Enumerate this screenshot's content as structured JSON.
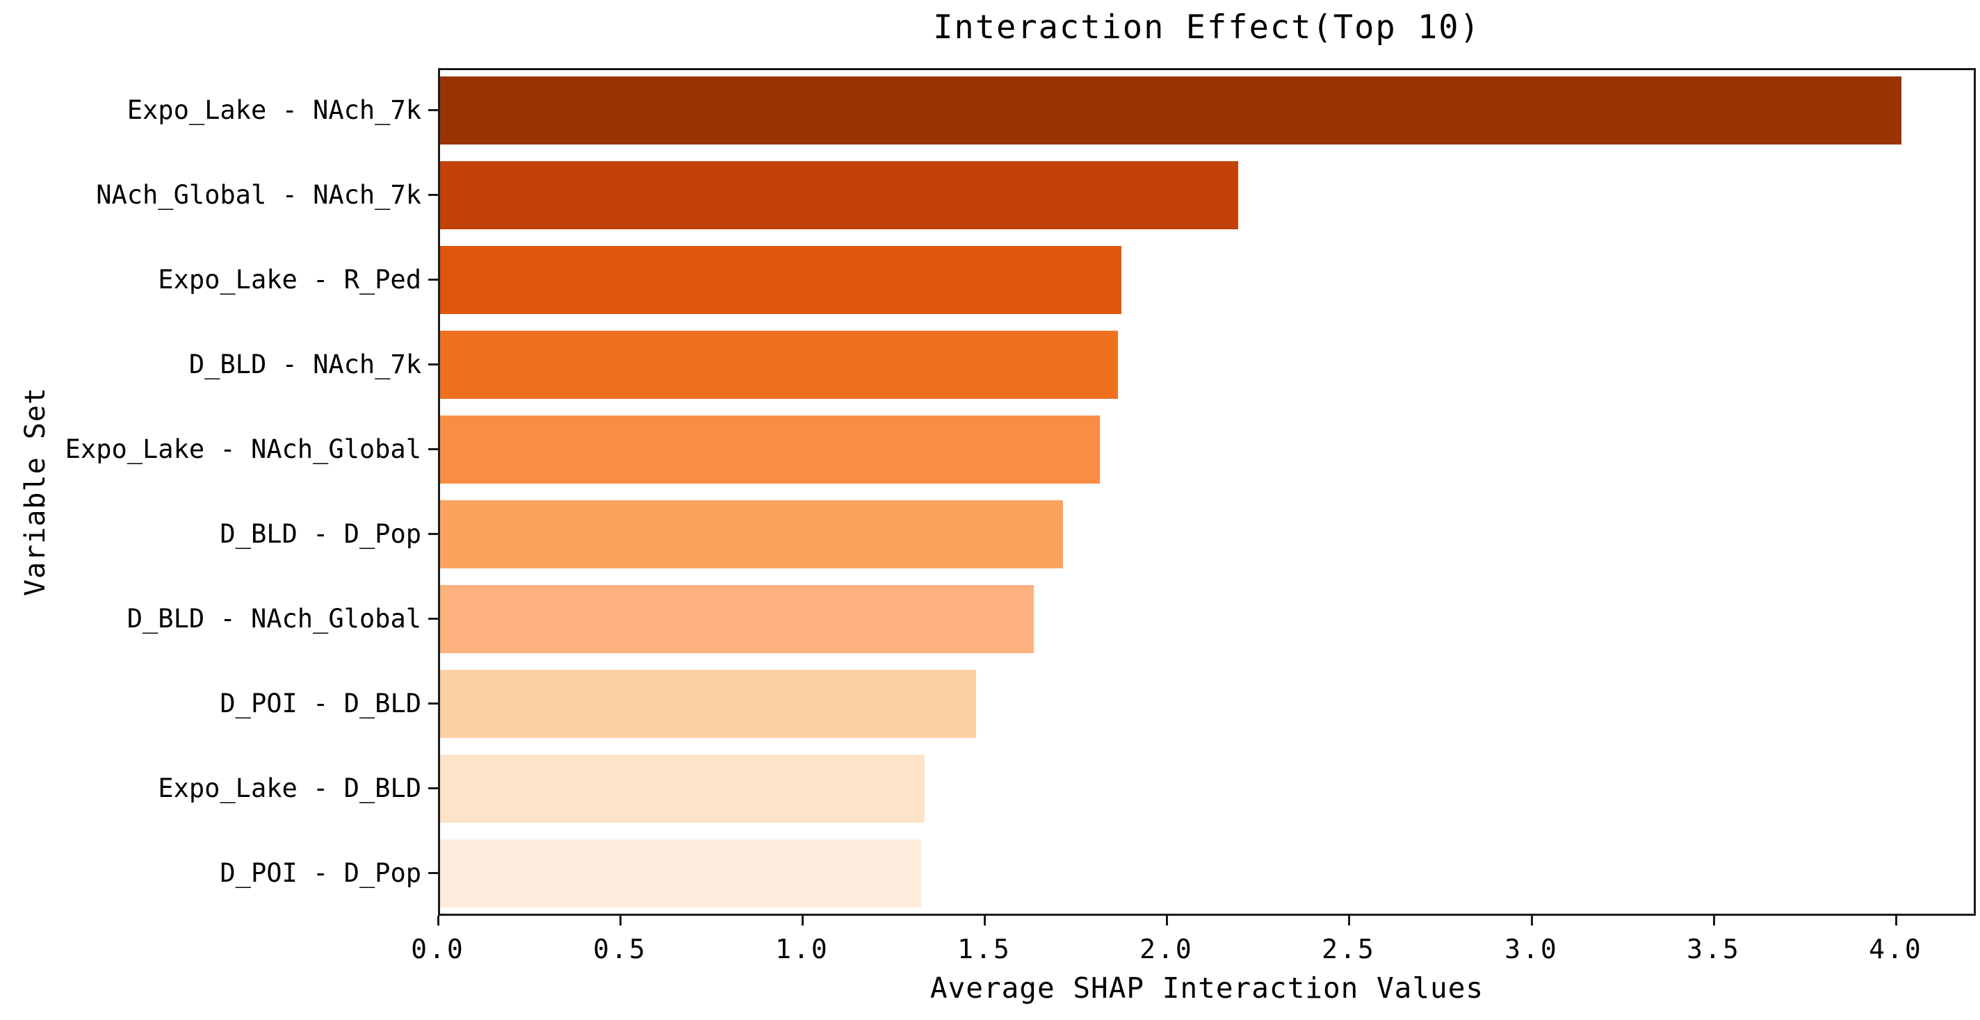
{
  "chart_data": {
    "type": "bar",
    "orientation": "horizontal",
    "title": "Interaction Effect(Top 10)",
    "xlabel": "Average SHAP Interaction Values",
    "ylabel": "Variable Set",
    "categories": [
      "Expo_Lake - NAch_7k",
      "NAch_Global - NAch_7k",
      "Expo_Lake - R_Ped",
      "D_BLD - NAch_7k",
      "Expo_Lake - NAch_Global",
      "D_BLD - D_Pop",
      "D_BLD - NAch_Global",
      "D_POI - D_BLD",
      "Expo_Lake - D_BLD",
      "D_POI - D_Pop"
    ],
    "values": [
      4.01,
      2.19,
      1.87,
      1.86,
      1.81,
      1.71,
      1.63,
      1.47,
      1.33,
      1.32
    ],
    "bar_colors": [
      "#9a3403",
      "#c2420a",
      "#e0550d",
      "#ef7120",
      "#f98d44",
      "#fba35e",
      "#fcb17e",
      "#fdd0a4",
      "#fee3c8",
      "#feecdc"
    ],
    "xlim": [
      0.0,
      4.22
    ],
    "xticks": [
      0.0,
      0.5,
      1.0,
      1.5,
      2.0,
      2.5,
      3.0,
      3.5,
      4.0
    ],
    "grid": false,
    "legend": null,
    "colors": {
      "axis": "#1a1a1a",
      "text": "#000000",
      "background": "#ffffff"
    }
  }
}
